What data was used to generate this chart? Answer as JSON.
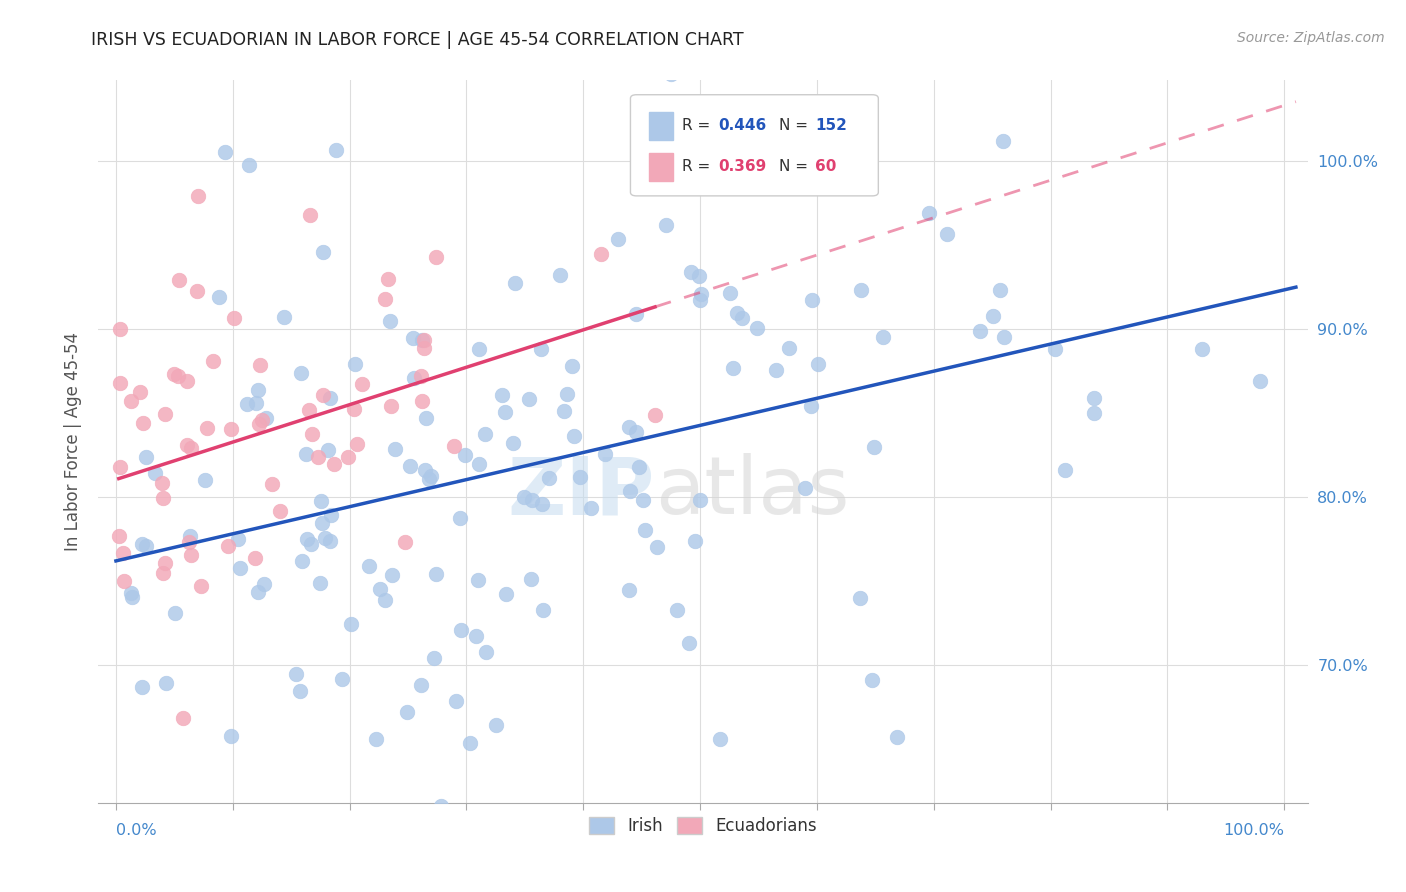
{
  "title": "IRISH VS ECUADORIAN IN LABOR FORCE | AGE 45-54 CORRELATION CHART",
  "source": "Source: ZipAtlas.com",
  "ylabel": "In Labor Force | Age 45-54",
  "legend_irish_R": "0.446",
  "legend_irish_N": "152",
  "legend_ecu_R": "0.369",
  "legend_ecu_N": "60",
  "irish_color": "#adc8e8",
  "ecu_color": "#f2a8b8",
  "irish_line_color": "#2255bb",
  "ecu_line_color": "#e04070",
  "watermark_zip": "ZIP",
  "watermark_atlas": "atlas",
  "bg_color": "#ffffff",
  "grid_color": "#dddddd",
  "irish_seed": 42,
  "ecu_seed": 7,
  "n_irish": 152,
  "n_ecu": 60,
  "r_irish": 0.446,
  "r_ecu": 0.369,
  "xlim_min": -0.015,
  "xlim_max": 1.02,
  "ylim_min": 0.618,
  "ylim_max": 1.048,
  "y_tick_positions": [
    0.7,
    0.8,
    0.9,
    1.0
  ],
  "y_tick_labels": [
    "70.0%",
    "80.0%",
    "90.0%",
    "100.0%"
  ],
  "x_tick_labels_left": "0.0%",
  "x_tick_labels_right": "100.0%"
}
